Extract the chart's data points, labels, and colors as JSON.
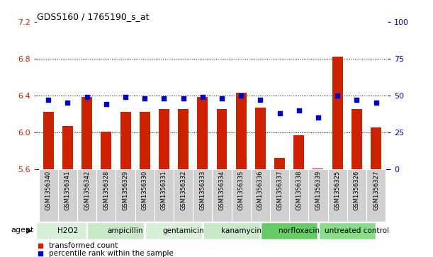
{
  "title": "GDS5160 / 1765190_s_at",
  "categories": [
    "GSM1356340",
    "GSM1356341",
    "GSM1356342",
    "GSM1356328",
    "GSM1356329",
    "GSM1356330",
    "GSM1356331",
    "GSM1356332",
    "GSM1356333",
    "GSM1356334",
    "GSM1356335",
    "GSM1356336",
    "GSM1356337",
    "GSM1356338",
    "GSM1356339",
    "GSM1356325",
    "GSM1356326",
    "GSM1356327"
  ],
  "bar_values": [
    6.22,
    6.07,
    6.38,
    6.01,
    6.22,
    6.22,
    6.25,
    6.25,
    6.38,
    6.25,
    6.43,
    6.27,
    5.72,
    5.97,
    5.61,
    6.82,
    6.25,
    6.05
  ],
  "percentile_values": [
    47,
    45,
    49,
    44,
    49,
    48,
    48,
    48,
    49,
    48,
    50,
    47,
    38,
    40,
    35,
    50,
    47,
    45
  ],
  "groups": [
    {
      "label": "H2O2",
      "start": 0,
      "end": 2,
      "color": "#d8f0d8"
    },
    {
      "label": "ampicillin",
      "start": 3,
      "end": 5,
      "color": "#c8e8c8"
    },
    {
      "label": "gentamicin",
      "start": 6,
      "end": 8,
      "color": "#d8f0d8"
    },
    {
      "label": "kanamycin",
      "start": 9,
      "end": 11,
      "color": "#c8e8c8"
    },
    {
      "label": "norfloxacin",
      "start": 12,
      "end": 14,
      "color": "#66cc66"
    },
    {
      "label": "untreated control",
      "start": 15,
      "end": 17,
      "color": "#88dd88"
    }
  ],
  "ylim_left": [
    5.6,
    7.2
  ],
  "ylim_right": [
    0,
    100
  ],
  "yticks_left": [
    5.6,
    6.0,
    6.4,
    6.8,
    7.2
  ],
  "yticks_right": [
    0,
    25,
    50,
    75,
    100
  ],
  "grid_lines": [
    6.0,
    6.4,
    6.8
  ],
  "bar_color": "#cc2200",
  "dot_color": "#0000cc",
  "bar_bottom": 5.6,
  "background_color": "#ffffff",
  "tick_color_left": "#cc2200",
  "tick_color_right": "#0000cc",
  "agent_label": "agent",
  "legend_bar": "transformed count",
  "legend_dot": "percentile rank within the sample",
  "xtick_bg": "#d0d0d0"
}
